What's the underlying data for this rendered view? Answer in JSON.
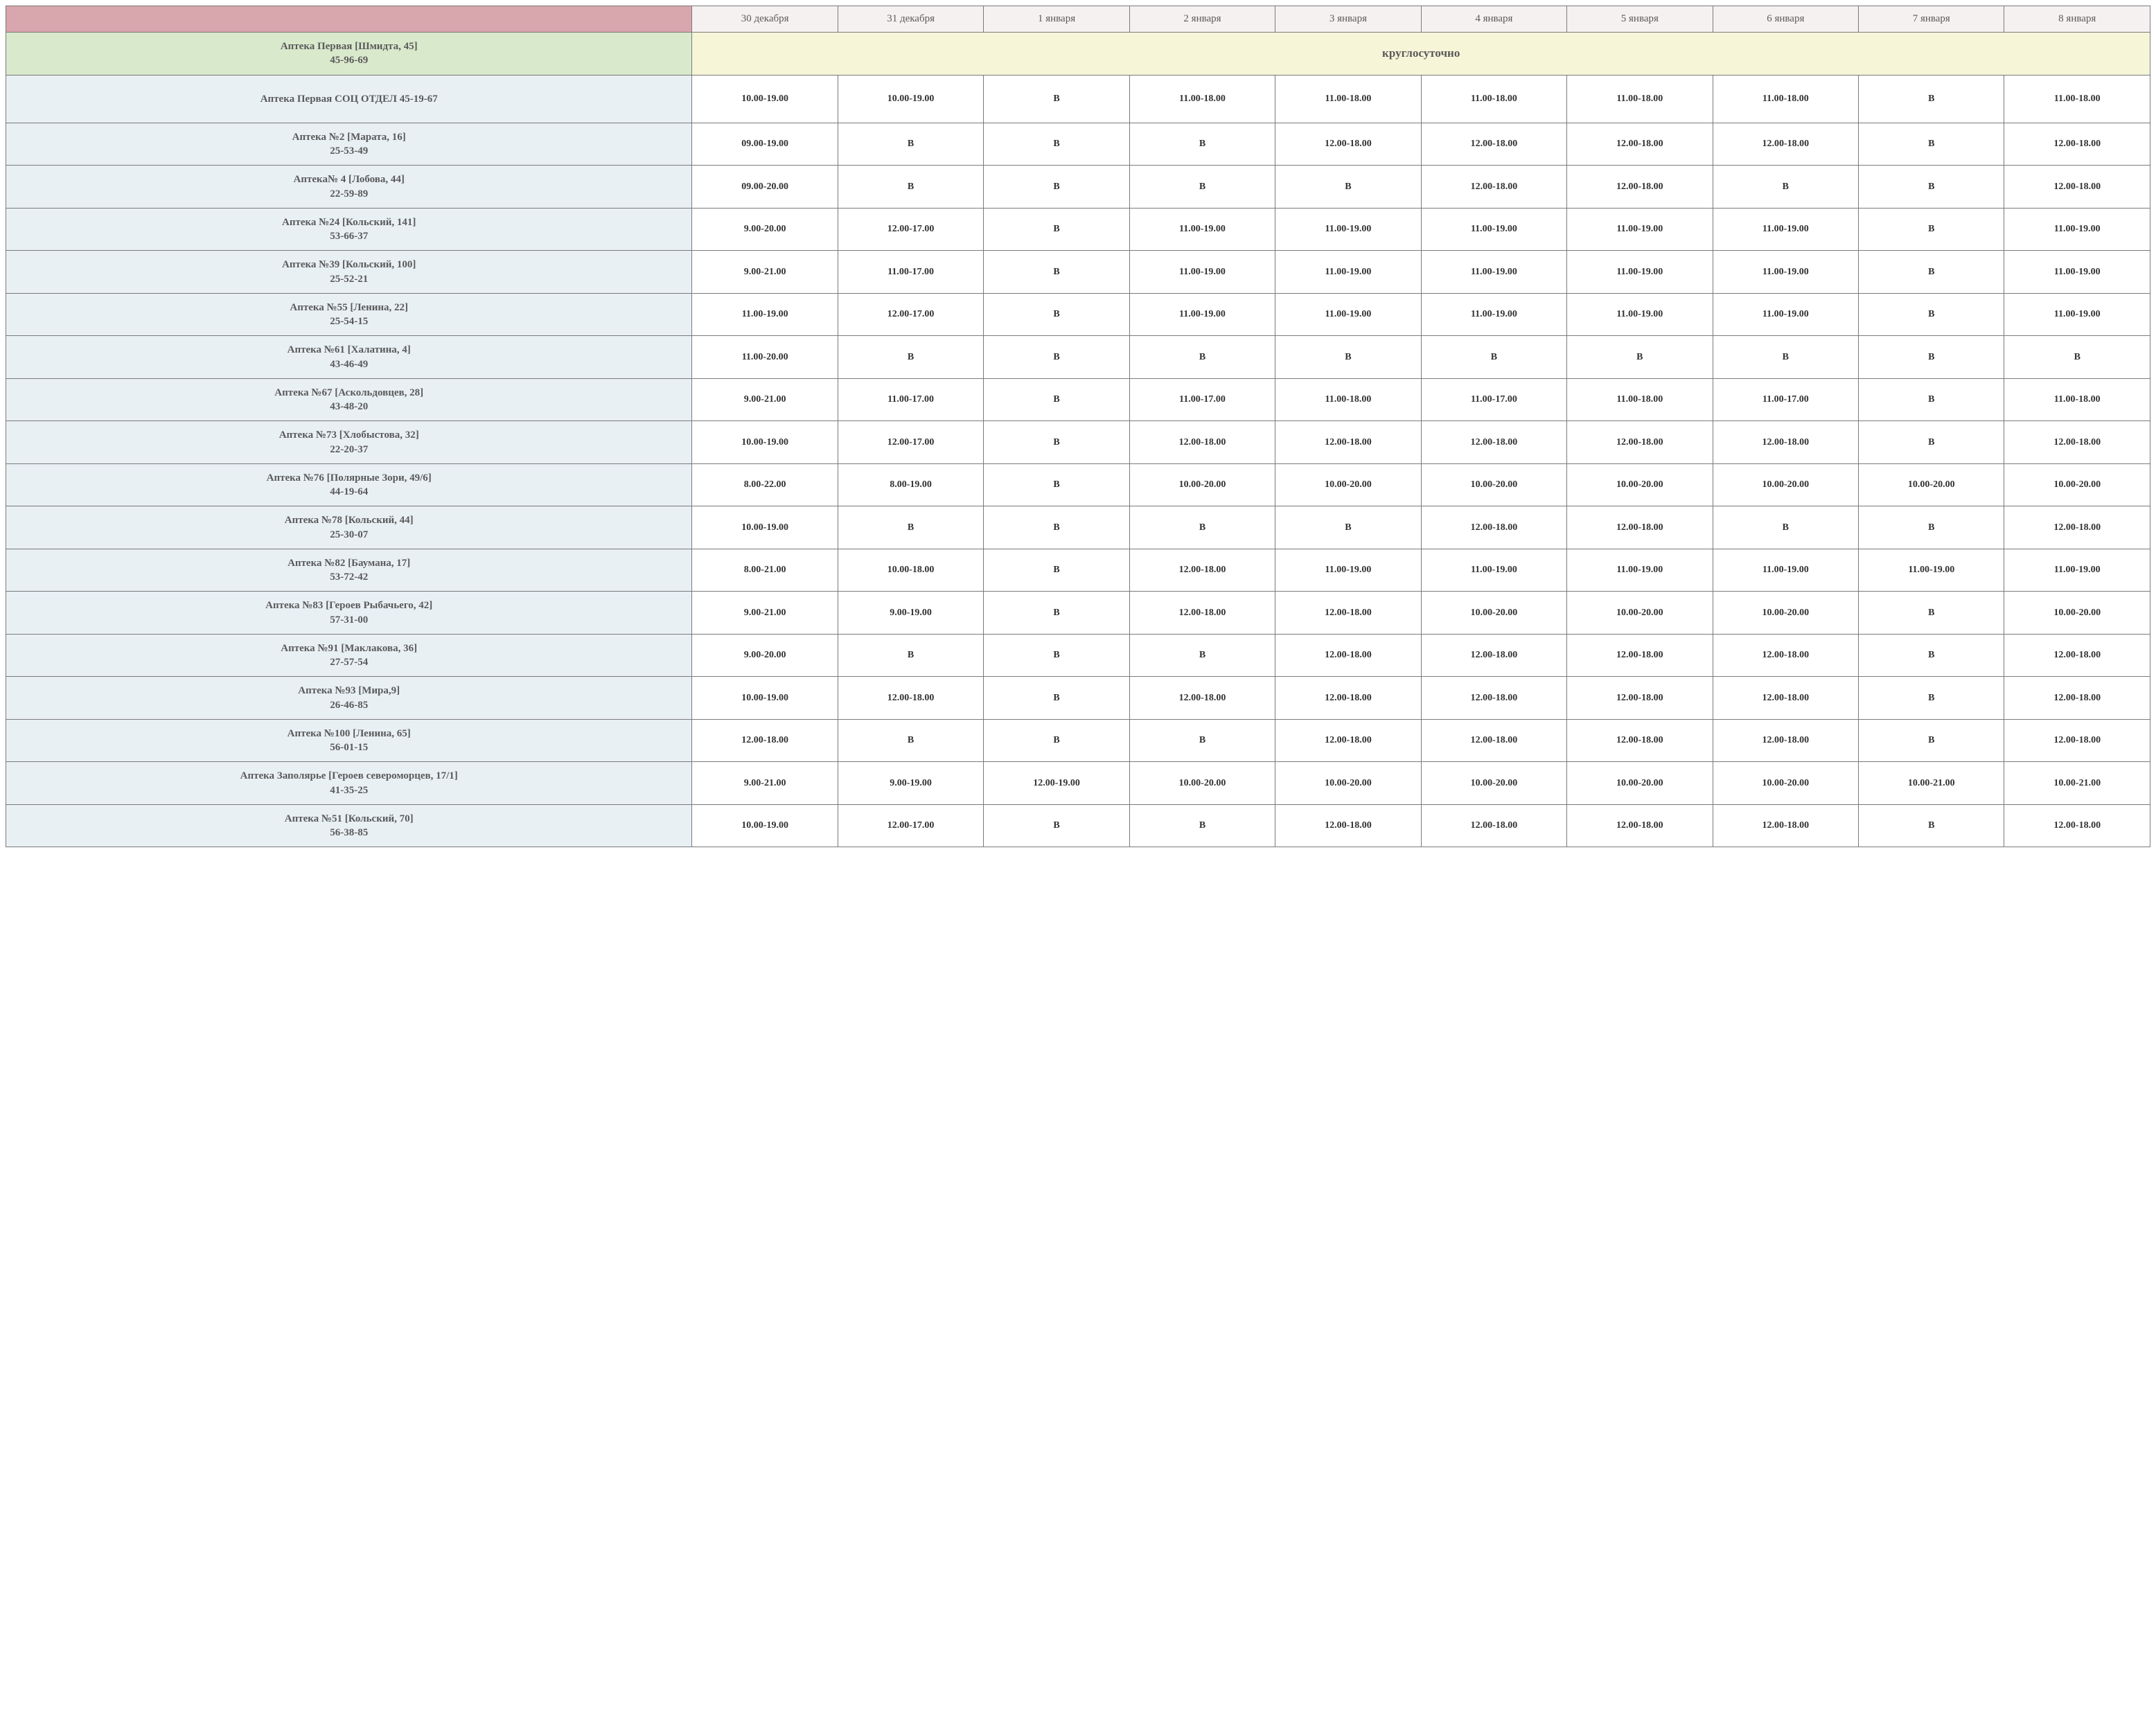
{
  "columns": [
    "30 декабря",
    "31 декабря",
    "1 января",
    "2 января",
    "3 января",
    "4 января",
    "5 января",
    "6 января",
    "7 января",
    "8 января"
  ],
  "roundTheClock": {
    "name_line1": "Аптека Первая [Шмидта, 45]",
    "name_line2": "45-96-69",
    "label": "круглосуточно"
  },
  "rows": [
    {
      "name_line1": "Аптека Первая СОЦ ОТДЕЛ 45-19-67",
      "name_line2": "",
      "tall": true,
      "cells": [
        "10.00-19.00",
        "10.00-19.00",
        "В",
        "11.00-18.00",
        "11.00-18.00",
        "11.00-18.00",
        "11.00-18.00",
        "11.00-18.00",
        "В",
        "11.00-18.00"
      ]
    },
    {
      "name_line1": "Аптека №2 [Марата, 16]",
      "name_line2": "25-53-49",
      "cells": [
        "09.00-19.00",
        "В",
        "В",
        "В",
        "12.00-18.00",
        "12.00-18.00",
        "12.00-18.00",
        "12.00-18.00",
        "В",
        "12.00-18.00"
      ]
    },
    {
      "name_line1": "Аптека№ 4 [Лобова, 44]",
      "name_line2": "22-59-89",
      "cells": [
        "09.00-20.00",
        "В",
        "В",
        "В",
        "В",
        "12.00-18.00",
        "12.00-18.00",
        "В",
        "В",
        "12.00-18.00"
      ]
    },
    {
      "name_line1": "Аптека №24 [Кольский, 141]",
      "name_line2": "53-66-37",
      "cells": [
        "9.00-20.00",
        "12.00-17.00",
        "В",
        "11.00-19.00",
        "11.00-19.00",
        "11.00-19.00",
        "11.00-19.00",
        "11.00-19.00",
        "В",
        "11.00-19.00"
      ]
    },
    {
      "name_line1": "Аптека №39 [Кольский, 100]",
      "name_line2": "25-52-21",
      "cells": [
        "9.00-21.00",
        "11.00-17.00",
        "В",
        "11.00-19.00",
        "11.00-19.00",
        "11.00-19.00",
        "11.00-19.00",
        "11.00-19.00",
        "В",
        "11.00-19.00"
      ]
    },
    {
      "name_line1": "Аптека №55 [Ленина, 22]",
      "name_line2": "25-54-15",
      "cells": [
        "11.00-19.00",
        "12.00-17.00",
        "В",
        "11.00-19.00",
        "11.00-19.00",
        "11.00-19.00",
        "11.00-19.00",
        "11.00-19.00",
        "В",
        "11.00-19.00"
      ]
    },
    {
      "name_line1": "Аптека №61 [Халатина, 4]",
      "name_line2": "43-46-49",
      "cells": [
        "11.00-20.00",
        "В",
        "В",
        "В",
        "В",
        "В",
        "В",
        "В",
        "В",
        "В"
      ]
    },
    {
      "name_line1": "Аптека №67 [Аскольдовцев, 28]",
      "name_line2": "43-48-20",
      "cells": [
        "9.00-21.00",
        "11.00-17.00",
        "В",
        "11.00-17.00",
        "11.00-18.00",
        "11.00-17.00",
        "11.00-18.00",
        "11.00-17.00",
        "В",
        "11.00-18.00"
      ]
    },
    {
      "name_line1": "Аптека №73 [Хлобыстова, 32]",
      "name_line2": "22-20-37",
      "cells": [
        "10.00-19.00",
        "12.00-17.00",
        "В",
        "12.00-18.00",
        "12.00-18.00",
        "12.00-18.00",
        "12.00-18.00",
        "12.00-18.00",
        "В",
        "12.00-18.00"
      ]
    },
    {
      "name_line1": "Аптека №76 [Полярные Зори, 49/6]",
      "name_line2": "44-19-64",
      "cells": [
        "8.00-22.00",
        "8.00-19.00",
        "В",
        "10.00-20.00",
        "10.00-20.00",
        "10.00-20.00",
        "10.00-20.00",
        "10.00-20.00",
        "10.00-20.00",
        "10.00-20.00"
      ]
    },
    {
      "name_line1": "Аптека №78 [Кольский, 44]",
      "name_line2": "25-30-07",
      "cells": [
        "10.00-19.00",
        "В",
        "В",
        "В",
        "В",
        "12.00-18.00",
        "12.00-18.00",
        "В",
        "В",
        "12.00-18.00"
      ]
    },
    {
      "name_line1": "Аптека №82 [Баумана, 17]",
      "name_line2": "53-72-42",
      "cells": [
        "8.00-21.00",
        "10.00-18.00",
        "В",
        "12.00-18.00",
        "11.00-19.00",
        "11.00-19.00",
        "11.00-19.00",
        "11.00-19.00",
        "11.00-19.00",
        "11.00-19.00"
      ]
    },
    {
      "name_line1": "Аптека №83 [Героев Рыбачьего, 42]",
      "name_line2": "57-31-00",
      "cells": [
        "9.00-21.00",
        "9.00-19.00",
        "В",
        "12.00-18.00",
        "12.00-18.00",
        "10.00-20.00",
        "10.00-20.00",
        "10.00-20.00",
        "В",
        "10.00-20.00"
      ]
    },
    {
      "name_line1": "Аптека №91 [Маклакова, 36]",
      "name_line2": "27-57-54",
      "cells": [
        "9.00-20.00",
        "В",
        "В",
        "В",
        "12.00-18.00",
        "12.00-18.00",
        "12.00-18.00",
        "12.00-18.00",
        "В",
        "12.00-18.00"
      ]
    },
    {
      "name_line1": "Аптека №93 [Мира,9]",
      "name_line2": "26-46-85",
      "cells": [
        "10.00-19.00",
        "12.00-18.00",
        "В",
        "12.00-18.00",
        "12.00-18.00",
        "12.00-18.00",
        "12.00-18.00",
        "12.00-18.00",
        "В",
        "12.00-18.00"
      ]
    },
    {
      "name_line1": "Аптека №100 [Ленина, 65]",
      "name_line2": "56-01-15",
      "cells": [
        "12.00-18.00",
        "В",
        "В",
        "В",
        "12.00-18.00",
        "12.00-18.00",
        "12.00-18.00",
        "12.00-18.00",
        "В",
        "12.00-18.00"
      ]
    },
    {
      "name_line1": "Аптека Заполярье [Героев североморцев, 17/1]",
      "name_line2": "41-35-25",
      "cells": [
        "9.00-21.00",
        "9.00-19.00",
        "12.00-19.00",
        "10.00-20.00",
        "10.00-20.00",
        "10.00-20.00",
        "10.00-20.00",
        "10.00-20.00",
        "10.00-21.00",
        "10.00-21.00"
      ]
    },
    {
      "name_line1": "Аптека №51 [Кольский, 70]",
      "name_line2": "56-38-85",
      "cells": [
        "10.00-19.00",
        "12.00-17.00",
        "В",
        "В",
        "12.00-18.00",
        "12.00-18.00",
        "12.00-18.00",
        "12.00-18.00",
        "В",
        "12.00-18.00"
      ]
    }
  ],
  "colors": {
    "header_blank_bg": "#d8a6ad",
    "header_date_bg": "#f6f1f1",
    "name_round_bg": "#d9e9cc",
    "round_cell_bg": "#f7f5d8",
    "name_cell_bg": "#e8f0f4",
    "data_cell_bg": "#ffffff",
    "border": "#7a7a7a",
    "text_muted": "#5a5a5a",
    "text_data": "#333333"
  }
}
